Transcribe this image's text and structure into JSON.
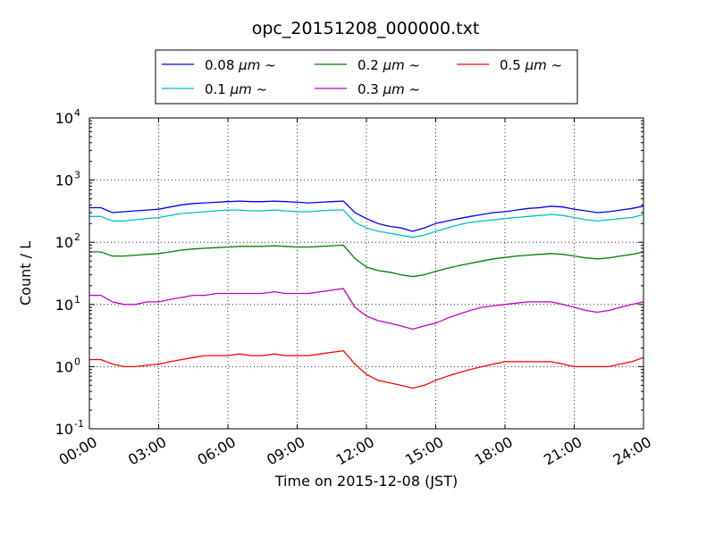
{
  "chart_data": {
    "type": "line",
    "title": "opc_20151208_000000.txt",
    "xlabel": "Time on 2015-12-08 (JST)",
    "ylabel": "Count / L",
    "y_scale": "log",
    "ylim": [
      0.1,
      10000
    ],
    "xlim": [
      "00:00",
      "24:00"
    ],
    "x_tick_labels": [
      "00:00",
      "03:00",
      "06:00",
      "09:00",
      "12:00",
      "15:00",
      "18:00",
      "21:00",
      "24:00"
    ],
    "y_ticks": [
      {
        "base": "10",
        "exp": "-1",
        "value": 0.1
      },
      {
        "base": "10",
        "exp": "0",
        "value": 1
      },
      {
        "base": "10",
        "exp": "1",
        "value": 10
      },
      {
        "base": "10",
        "exp": "2",
        "value": 100
      },
      {
        "base": "10",
        "exp": "3",
        "value": 1000
      },
      {
        "base": "10",
        "exp": "4",
        "value": 10000
      }
    ],
    "grid": true,
    "legend_position": "top-center",
    "x_hours": [
      0.5,
      1,
      1.5,
      2,
      2.5,
      3,
      3.5,
      4,
      4.5,
      5,
      5.5,
      6,
      6.5,
      7,
      7.5,
      8,
      8.5,
      9,
      9.5,
      10,
      10.5,
      11,
      11.5,
      12,
      12.5,
      13,
      13.5,
      14,
      14.5,
      15,
      15.5,
      16,
      16.5,
      17,
      17.5,
      18,
      18.5,
      19,
      19.5,
      20,
      20.5,
      21,
      21.5,
      22,
      22.5,
      23,
      23.5,
      24
    ],
    "series": [
      {
        "name": "0.08",
        "unit": "μm ~",
        "color": "#0000ff",
        "values": [
          360,
          300,
          310,
          320,
          330,
          340,
          370,
          400,
          420,
          430,
          440,
          450,
          460,
          450,
          450,
          460,
          450,
          440,
          430,
          440,
          450,
          460,
          300,
          240,
          200,
          180,
          170,
          150,
          170,
          200,
          220,
          240,
          260,
          280,
          300,
          310,
          330,
          350,
          360,
          380,
          370,
          340,
          320,
          300,
          310,
          330,
          350,
          380
        ]
      },
      {
        "name": "0.1",
        "unit": "μm ~",
        "color": "#00bfbf",
        "values": [
          260,
          220,
          220,
          230,
          240,
          250,
          270,
          290,
          300,
          310,
          320,
          330,
          330,
          320,
          320,
          330,
          320,
          310,
          310,
          320,
          330,
          330,
          210,
          170,
          150,
          140,
          130,
          120,
          130,
          150,
          170,
          190,
          210,
          220,
          230,
          240,
          250,
          260,
          270,
          280,
          270,
          250,
          230,
          220,
          230,
          240,
          250,
          280
        ]
      },
      {
        "name": "0.2",
        "unit": "μm ~",
        "color": "#007f00",
        "values": [
          70,
          60,
          60,
          62,
          64,
          66,
          70,
          75,
          78,
          80,
          82,
          84,
          86,
          86,
          86,
          88,
          86,
          84,
          84,
          86,
          88,
          90,
          55,
          40,
          35,
          33,
          30,
          28,
          30,
          34,
          38,
          42,
          46,
          50,
          54,
          57,
          60,
          62,
          64,
          66,
          64,
          60,
          56,
          54,
          56,
          60,
          64,
          70
        ]
      },
      {
        "name": "0.3",
        "unit": "μm ~",
        "color": "#bf00bf",
        "values": [
          14,
          11,
          10,
          10,
          11,
          11,
          12,
          13,
          14,
          14,
          15,
          15,
          15,
          15,
          15,
          16,
          15,
          15,
          15,
          16,
          17,
          18,
          9,
          6.5,
          5.5,
          5,
          4.5,
          4,
          4.5,
          5,
          6,
          7,
          8,
          9,
          9.5,
          10,
          10.5,
          11,
          11,
          11,
          10,
          9,
          8,
          7.5,
          8,
          9,
          10,
          11
        ]
      },
      {
        "name": "0.5",
        "unit": "μm ~",
        "color": "#ff0000",
        "values": [
          1.3,
          1.1,
          1.0,
          1.0,
          1.05,
          1.1,
          1.2,
          1.3,
          1.4,
          1.5,
          1.5,
          1.5,
          1.6,
          1.5,
          1.5,
          1.6,
          1.5,
          1.5,
          1.5,
          1.6,
          1.7,
          1.8,
          1.1,
          0.75,
          0.6,
          0.55,
          0.5,
          0.45,
          0.5,
          0.6,
          0.7,
          0.8,
          0.9,
          1.0,
          1.1,
          1.2,
          1.2,
          1.2,
          1.2,
          1.2,
          1.1,
          1.0,
          1.0,
          1.0,
          1.0,
          1.1,
          1.2,
          1.4
        ]
      }
    ]
  }
}
